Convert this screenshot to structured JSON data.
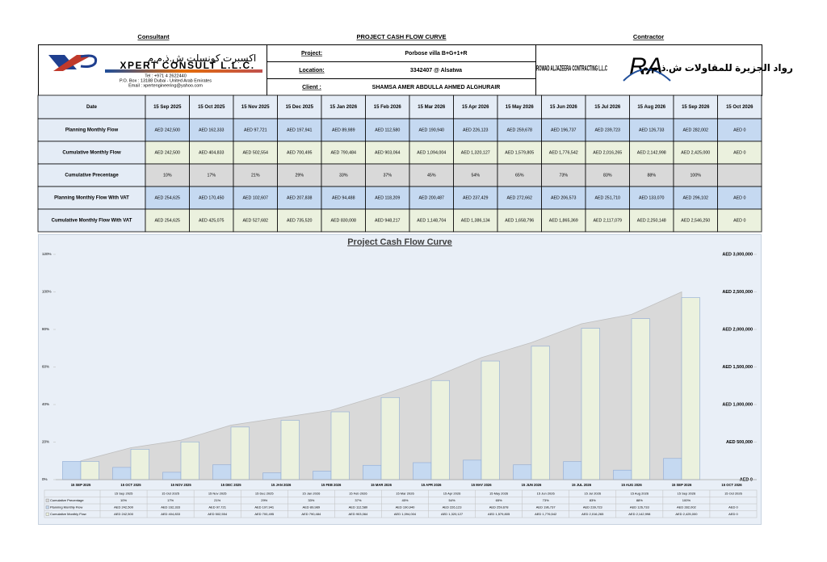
{
  "header": {
    "consultant_heading": "Consultant",
    "title": "PROJECT CASH FLOW CURVE",
    "contractor_heading": "Contractor"
  },
  "consultant": {
    "name_ar": "اكسبرت كونسلت ش.ذ.م.م",
    "name_en": "XPERT CONSULT L.L.C.",
    "tel": "Tel : +971 4 2622440",
    "address": "P.O. Box : 13188 Dubai - United Arab Emirates",
    "email": "Email : xpertengineering@yahoo.com"
  },
  "project_info": [
    {
      "label": "Project:",
      "value": "Porbose villa B+G+1+R"
    },
    {
      "label": "Location:",
      "value": "3342407 @ Alsatwa"
    },
    {
      "label": "Client :",
      "value": "SHAMSA AMER ABDULLA AHMED ALGHURAIR"
    }
  ],
  "contractor": {
    "name_en": "ROWAD ALJAZEERA CONTRACTING L.L.C",
    "monogram": "RA",
    "name_ar": "رواد الجزيرة للمقاولات ش.ذ.م.م"
  },
  "table": {
    "header": [
      "Date",
      "15 Sep 2025",
      "15 Oct 2025",
      "15 Nov 2025",
      "15 Dec 2025",
      "15 Jan 2026",
      "15 Feb 2026",
      "15 Mar 2026",
      "15 Apr 2026",
      "15 May 2026",
      "15 Jun 2026",
      "15 Jul 2026",
      "15 Aug 2026",
      "15 Sep 2026",
      "15 Oct 2026"
    ],
    "rows": [
      [
        "Planning Monthly Flow",
        "AED 242,500",
        "AED 162,333",
        "AED 97,721",
        "AED 197,941",
        "AED 89,989",
        "AED 112,580",
        "AED 190,940",
        "AED 226,123",
        "AED 259,678",
        "AED 196,737",
        "AED 239,723",
        "AED 126,733",
        "AED 282,002",
        "AED 0"
      ],
      [
        "Cumulative Monthly Flow",
        "AED 242,500",
        "AED 404,833",
        "AED 502,554",
        "AED 700,495",
        "AED 790,484",
        "AED 903,064",
        "AED 1,094,004",
        "AED 1,320,127",
        "AED 1,579,805",
        "AED 1,776,542",
        "AED 2,016,265",
        "AED 2,142,998",
        "AED 2,425,000",
        "AED 0"
      ],
      [
        "Cumulative Precentage",
        "10%",
        "17%",
        "21%",
        "29%",
        "33%",
        "37%",
        "45%",
        "54%",
        "65%",
        "73%",
        "83%",
        "88%",
        "100%",
        null
      ],
      [
        "Planning Monthly Flow  With VAT",
        "AED 254,625",
        "AED 170,450",
        "AED 102,607",
        "AED 207,838",
        "AED 94,488",
        "AED 118,209",
        "AED 200,487",
        "AED 237,429",
        "AED 272,662",
        "AED 206,573",
        "AED 251,710",
        "AED 133,070",
        "AED 296,102",
        "AED 0"
      ],
      [
        "Cumulative Monthly Flow  With VAT",
        "AED 254,625",
        "AED 425,075",
        "AED 527,682",
        "AED 735,520",
        "AED 830,008",
        "AED 948,217",
        "AED 1,148,704",
        "AED 1,386,134",
        "AED 1,658,796",
        "AED 1,865,369",
        "AED 2,117,079",
        "AED 2,250,148",
        "AED 2,546,250",
        "AED 0"
      ]
    ],
    "row_colors": [
      "#c5d9f1",
      "#ebf1de",
      "#d9d9d9",
      "#c5d9f1",
      "#ebf1de"
    ]
  },
  "chart_data": {
    "type": "combo",
    "title": "Project Cash Flow Curve",
    "categories": [
      "15 Sep 2025",
      "15 Oct 2025",
      "15 Nov 2025",
      "15 Dec 2025",
      "15 Jan 2026",
      "15 Feb 2026",
      "15 Mar 2026",
      "15 Apr 2026",
      "15 May 2026",
      "15 Jun 2026",
      "15 Jul 2026",
      "15 Aug 2026",
      "15 Sep 2026",
      "15 Oct 2026"
    ],
    "ylim": [
      0,
      120
    ],
    "yticks": [
      {
        "value": 0,
        "label": "0%"
      },
      {
        "value": 20,
        "label": "20%"
      },
      {
        "value": 40,
        "label": "40%"
      },
      {
        "value": 60,
        "label": "60%"
      },
      {
        "value": 80,
        "label": "80%"
      },
      {
        "value": 100,
        "label": "100%"
      },
      {
        "value": 120,
        "label": "120%"
      }
    ],
    "y2lim": [
      0,
      3000000
    ],
    "y2ticks": [
      {
        "value": 0,
        "label": "AED 0"
      },
      {
        "value": 500000,
        "label": "AED 500,000"
      },
      {
        "value": 1000000,
        "label": "AED 1,000,000"
      },
      {
        "value": 1500000,
        "label": "AED 1,500,000"
      },
      {
        "value": 2000000,
        "label": "AED 2,000,000"
      },
      {
        "value": 2500000,
        "label": "AED 2,500,000"
      },
      {
        "value": 3000000,
        "label": "AED 3,000,000"
      }
    ],
    "grid": false,
    "series": [
      {
        "name": "Cumulative Precentage",
        "type": "area",
        "color": "#d9d9d9",
        "values": [
          10,
          17,
          21,
          29,
          33,
          37,
          45,
          54,
          65,
          73,
          83,
          88,
          100,
          null
        ],
        "value_labels": [
          "10%",
          "17%",
          "21%",
          "29%",
          "33%",
          "37%",
          "45%",
          "54%",
          "65%",
          "73%",
          "83%",
          "88%",
          "100%",
          null
        ]
      },
      {
        "name": "Planning Monthly Flow",
        "type": "bar",
        "axis": "y2",
        "color": "#c5d9f1",
        "values": [
          242500,
          162333,
          97721,
          197941,
          89989,
          112580,
          190940,
          226123,
          259678,
          196737,
          239723,
          126733,
          282002,
          0
        ],
        "value_labels": [
          "AED 242,500",
          "AED 162,333",
          "AED 97,721",
          "AED 197,941",
          "AED 89,989",
          "AED 112,580",
          "AED 190,940",
          "AED 226,123",
          "AED 259,678",
          "AED 196,737",
          "AED 239,723",
          "AED 126,733",
          "AED 282,002",
          "AED 0"
        ]
      },
      {
        "name": "Cumulative Monthly Flow",
        "type": "bar",
        "axis": "y2",
        "color": "#ebf1de",
        "values": [
          242500,
          404833,
          502554,
          700495,
          790484,
          903064,
          1094004,
          1320127,
          1579805,
          1776542,
          2016265,
          2142998,
          2425000,
          0
        ],
        "value_labels": [
          "AED 242,500",
          "AED 404,833",
          "AED 502,554",
          "AED 700,495",
          "AED 790,484",
          "AED 903,064",
          "AED 1,094,004",
          "AED 1,320,127",
          "AED 1,579,805",
          "AED 1,776,542",
          "AED 2,016,265",
          "AED 2,142,998",
          "AED 2,425,000",
          "AED 0"
        ]
      }
    ]
  }
}
